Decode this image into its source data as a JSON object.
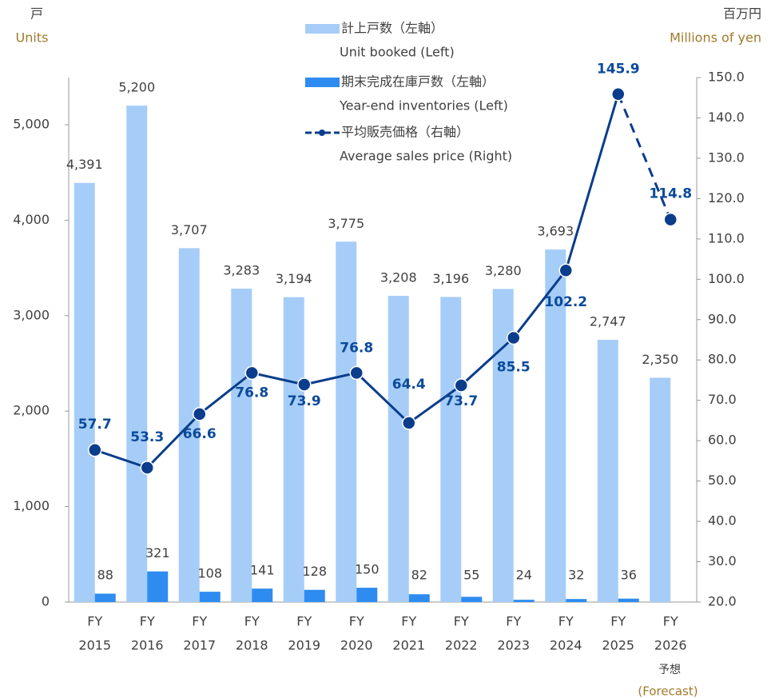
{
  "chart_data": {
    "type": "bar",
    "y_label": "戸",
    "y_label_en": "Units",
    "y2_label": "百万円",
    "y2_label_en": "Millions of yen",
    "categories": [
      [
        "FY",
        "2015"
      ],
      [
        "FY",
        "2016"
      ],
      [
        "FY",
        "2017"
      ],
      [
        "FY",
        "2018"
      ],
      [
        "FY",
        "2019"
      ],
      [
        "FY",
        "2020"
      ],
      [
        "FY",
        "2021"
      ],
      [
        "FY",
        "2022"
      ],
      [
        "FY",
        "2023"
      ],
      [
        "FY",
        "2024"
      ],
      [
        "FY",
        "2025"
      ],
      [
        "FY",
        "2026"
      ]
    ],
    "annotations": [
      "予想",
      "(Forecast)"
    ],
    "ylim": [
      0,
      5000
    ],
    "yticks": [
      0,
      {
        "value": 1000,
        "label": "1,000"
      },
      {
        "value": 2000,
        "label": "2,000"
      },
      {
        "value": 3000,
        "label": "3,000"
      },
      {
        "value": 4000,
        "label": "4,000"
      },
      {
        "value": 5000,
        "label": "5,000"
      }
    ],
    "y2lim": [
      20,
      150
    ],
    "y2ticks": [
      {
        "value": 20,
        "label": "20.0"
      },
      {
        "value": 30,
        "label": "30.0"
      },
      {
        "value": 40,
        "label": "40.0"
      },
      {
        "value": 50,
        "label": "50.0"
      },
      {
        "value": 60,
        "label": "60.0"
      },
      {
        "value": 70,
        "label": "70.0"
      },
      {
        "value": 80,
        "label": "80.0"
      },
      {
        "value": 90,
        "label": "90.0"
      },
      {
        "value": 100,
        "label": "100.0"
      },
      {
        "value": 110,
        "label": "110.0"
      },
      {
        "value": 120,
        "label": "120.0"
      },
      {
        "value": 130,
        "label": "130.0"
      },
      {
        "value": 140,
        "label": "140.0"
      },
      {
        "value": 150,
        "label": "150.0"
      }
    ],
    "series": [
      {
        "name": "計上戸数（左軸）",
        "name_en": "Unit booked (Left)",
        "type": "bar",
        "color": "#a6cdf7",
        "values": [
          4391,
          5200,
          3707,
          3283,
          3194,
          3775,
          3208,
          3196,
          3280,
          3693,
          2747,
          2350
        ],
        "value_labels": [
          "4,391",
          "5,200",
          "3,707",
          "3,283",
          "3,194",
          "3,775",
          "3,208",
          "3,196",
          "3,280",
          "3,693",
          "2,747",
          "2,350"
        ]
      },
      {
        "name": "期末完成在庫戸数（左軸）",
        "name_en": "Year-end inventories (Left)",
        "type": "bar",
        "color": "#2e8cf0",
        "values": [
          88,
          321,
          108,
          141,
          128,
          150,
          82,
          55,
          24,
          32,
          36,
          null
        ]
      },
      {
        "name": "平均販売価格（右軸）",
        "name_en": "Average sales price (Right)",
        "type": "line",
        "axis": "y2",
        "color": "#0b3d8c",
        "values": [
          57.7,
          53.3,
          66.6,
          76.8,
          73.9,
          76.8,
          64.4,
          73.7,
          85.5,
          102.2,
          145.9,
          114.8
        ]
      }
    ]
  }
}
